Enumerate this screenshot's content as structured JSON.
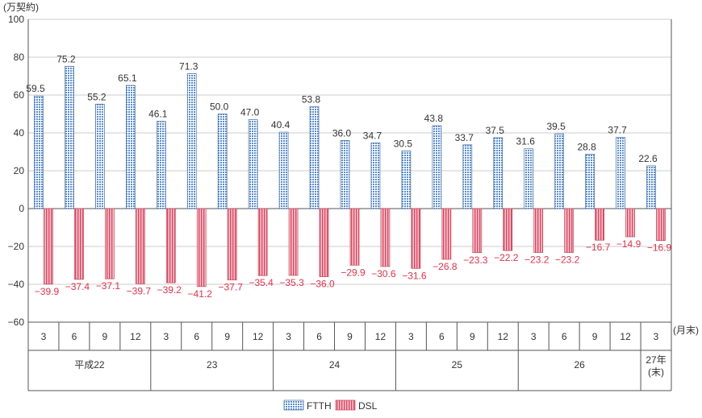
{
  "chart_data": {
    "type": "bar",
    "unit_label": "(万契約)",
    "month_suffix": "(月末)",
    "ylim": [
      -60,
      100
    ],
    "yticks": [
      100,
      80,
      60,
      40,
      20,
      0,
      -20,
      -40,
      -60
    ],
    "grid": true,
    "legend_position": "bottom-center",
    "months": [
      "3",
      "6",
      "9",
      "12",
      "3",
      "6",
      "9",
      "12",
      "3",
      "6",
      "9",
      "12",
      "3",
      "6",
      "9",
      "12",
      "3",
      "6",
      "9",
      "12",
      "3"
    ],
    "years": [
      {
        "label": "平成22",
        "count": 4
      },
      {
        "label": "23",
        "count": 4
      },
      {
        "label": "24",
        "count": 4
      },
      {
        "label": "25",
        "count": 4
      },
      {
        "label": "26",
        "count": 4
      },
      {
        "label": "27年\n(末)",
        "count": 1
      }
    ],
    "series": [
      {
        "name": "FTTH",
        "color": "#9dc3e6",
        "values": [
          59.5,
          75.2,
          55.2,
          65.1,
          46.1,
          71.3,
          50.0,
          47.0,
          40.4,
          53.8,
          36.0,
          34.7,
          30.5,
          43.8,
          33.7,
          37.5,
          31.6,
          39.5,
          28.8,
          37.7,
          22.6
        ]
      },
      {
        "name": "DSL",
        "color": "#f4a6b0",
        "values": [
          -39.9,
          -37.4,
          -37.1,
          -39.7,
          -39.2,
          -41.2,
          -37.7,
          -35.4,
          -35.3,
          -36.0,
          -29.9,
          -30.6,
          -31.6,
          -26.8,
          -23.3,
          -22.2,
          -23.2,
          -23.2,
          -16.7,
          -14.9,
          -16.9
        ]
      }
    ]
  }
}
